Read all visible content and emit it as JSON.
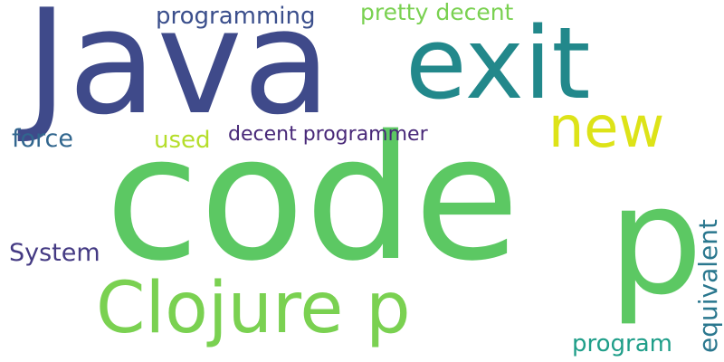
{
  "word_cloud": {
    "words": [
      {
        "text": "Java",
        "color": "#3f4a8a"
      },
      {
        "text": "exit",
        "color": "#22888b"
      },
      {
        "text": "code",
        "color": "#5cc863"
      },
      {
        "text": "p",
        "color": "#5cc863"
      },
      {
        "text": "Clojure p",
        "color": "#7ad151"
      },
      {
        "text": "new",
        "color": "#dde318"
      },
      {
        "text": "programming",
        "color": "#3b4f8c"
      },
      {
        "text": "pretty decent",
        "color": "#7ad151"
      },
      {
        "text": "force",
        "color": "#31668e"
      },
      {
        "text": "used",
        "color": "#b5de2b"
      },
      {
        "text": "decent programmer",
        "color": "#482878"
      },
      {
        "text": "System",
        "color": "#443a83"
      },
      {
        "text": "equivalent",
        "color": "#2a778e"
      },
      {
        "text": "program",
        "color": "#1f9e89"
      }
    ]
  }
}
